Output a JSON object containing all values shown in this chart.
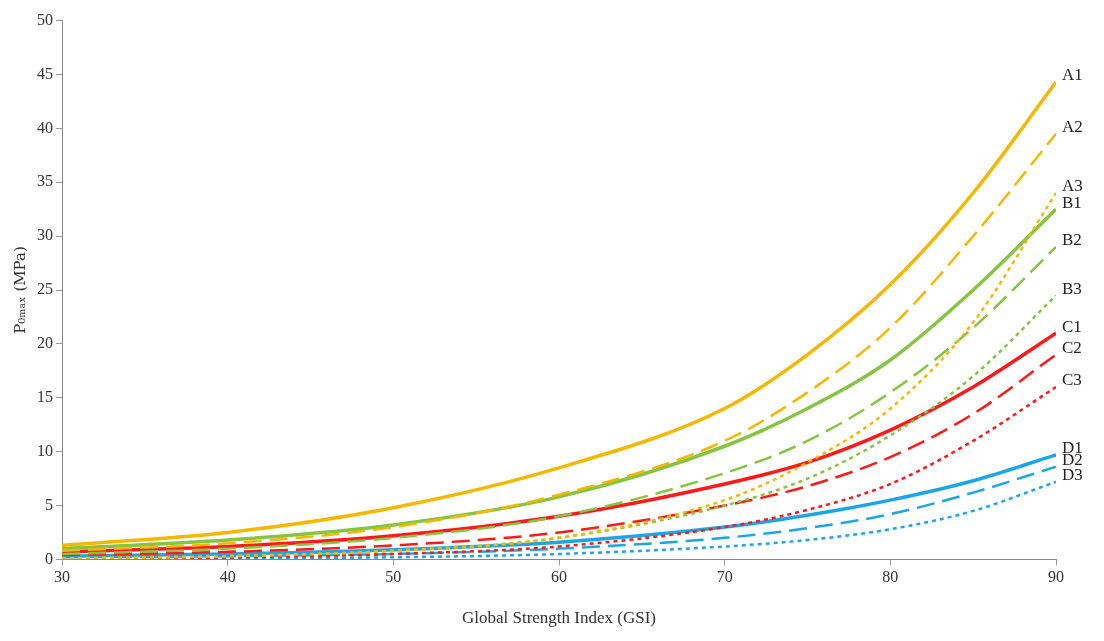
{
  "chart_data": {
    "type": "line",
    "xlabel": "Global Strength Index (GSI)",
    "ylabel": "P₀ₘₐₓ (MPa)",
    "x": [
      30,
      40,
      50,
      60,
      70,
      75,
      80,
      85,
      90
    ],
    "xlim": [
      30,
      90
    ],
    "xticks": [
      30,
      40,
      50,
      60,
      70,
      80,
      90
    ],
    "ylim": [
      0,
      50
    ],
    "yticks": [
      0,
      5,
      10,
      15,
      20,
      25,
      30,
      35,
      40,
      45,
      50
    ],
    "grid": false,
    "legend": false,
    "marker": "none",
    "series": [
      {
        "name": "A1",
        "color": "#f5b800",
        "line_style": "solid",
        "values": [
          1.3,
          2.5,
          4.8,
          8.5,
          14,
          19,
          25.5,
          34,
          44.3
        ]
      },
      {
        "name": "A2",
        "color": "#f5b800",
        "line_style": "dashed",
        "values": [
          0.8,
          1.5,
          3,
          6,
          11,
          15.5,
          21.5,
          30,
          39.5
        ]
      },
      {
        "name": "A3",
        "color": "#f5b800",
        "line_style": "dotted",
        "values": [
          0.1,
          0.3,
          0.8,
          2,
          5.5,
          9,
          14,
          22,
          34
        ]
      },
      {
        "name": "B1",
        "color": "#86c443",
        "line_style": "solid",
        "values": [
          1,
          1.8,
          3.2,
          5.8,
          10.5,
          14,
          18.5,
          25,
          32.5
        ]
      },
      {
        "name": "B2",
        "color": "#86c443",
        "line_style": "dashed",
        "values": [
          0.5,
          1,
          2,
          4,
          8,
          11,
          15.5,
          21.5,
          29
        ]
      },
      {
        "name": "B3",
        "color": "#86c443",
        "line_style": "dotted",
        "values": [
          0.1,
          0.3,
          0.8,
          2,
          5,
          7.5,
          11.5,
          17,
          24.5
        ]
      },
      {
        "name": "C1",
        "color": "#ff1a1a",
        "line_style": "solid",
        "values": [
          0.7,
          1.2,
          2.2,
          4,
          7,
          9,
          12,
          16,
          21
        ]
      },
      {
        "name": "C2",
        "color": "#ff1a1a",
        "line_style": "dashed",
        "values": [
          0.4,
          0.7,
          1.3,
          2.5,
          5,
          6.8,
          9.5,
          13.5,
          19
        ]
      },
      {
        "name": "C3",
        "color": "#ff1a1a",
        "line_style": "dotted",
        "values": [
          0.1,
          0.2,
          0.5,
          1.2,
          3,
          4.6,
          7,
          11,
          16
        ]
      },
      {
        "name": "D1",
        "color": "#1ba6e6",
        "line_style": "solid",
        "values": [
          0.3,
          0.5,
          0.9,
          1.6,
          3,
          4.1,
          5.5,
          7.3,
          9.7
        ]
      },
      {
        "name": "D2",
        "color": "#1ba6e6",
        "line_style": "dashed",
        "values": [
          0.2,
          0.3,
          0.5,
          1,
          2,
          2.9,
          4.2,
          6.2,
          8.6
        ]
      },
      {
        "name": "D3",
        "color": "#1ba6e6",
        "line_style": "dotted",
        "values": [
          0.1,
          0.1,
          0.2,
          0.5,
          1.2,
          1.8,
          2.8,
          4.5,
          7.2
        ]
      }
    ]
  }
}
